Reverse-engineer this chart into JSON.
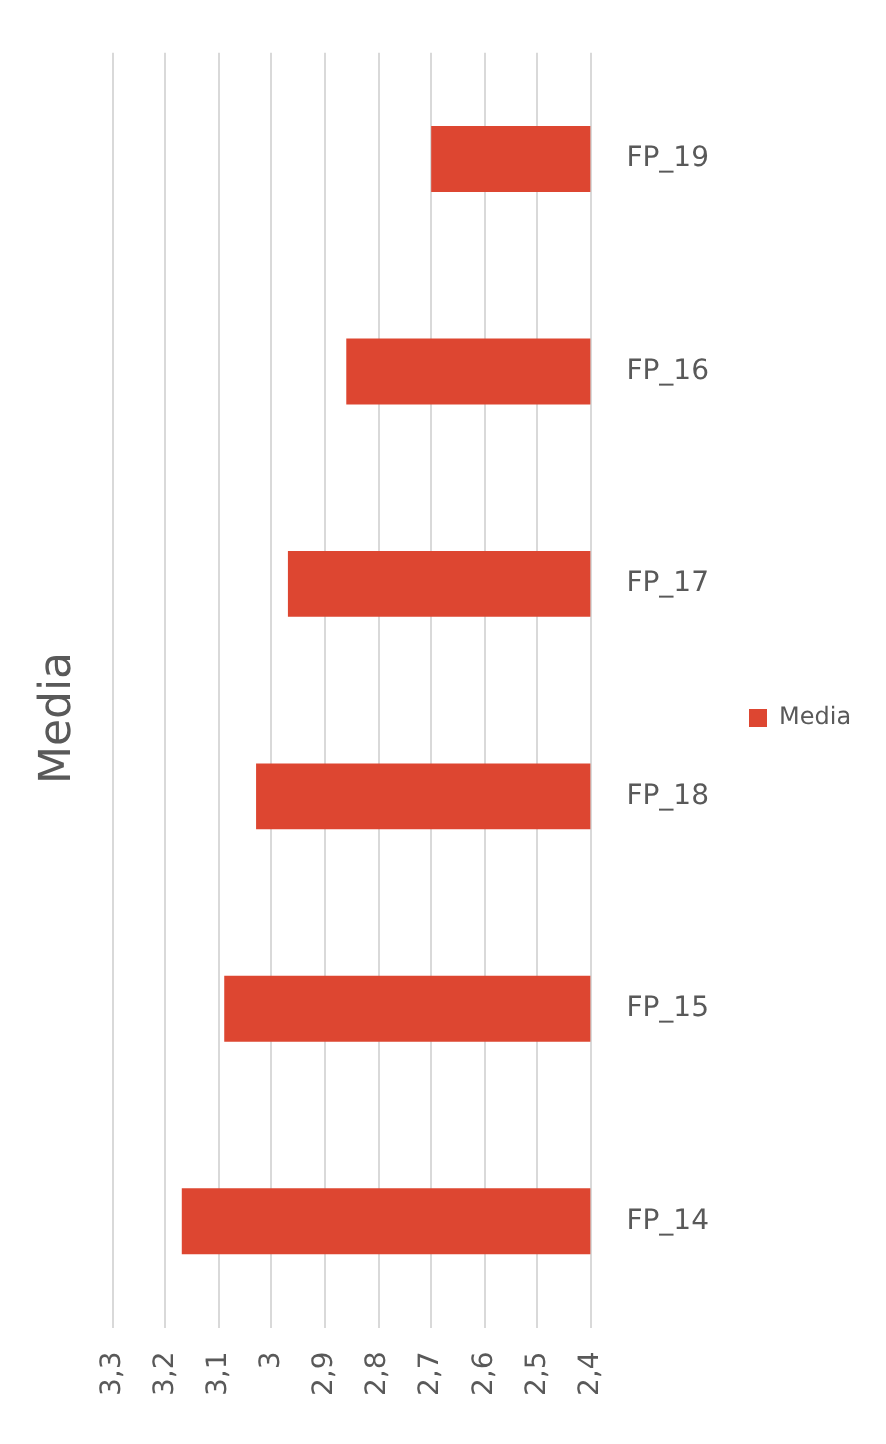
{
  "chart_data": {
    "type": "bar",
    "orientation": "horizontal",
    "title": "Media",
    "categories": [
      "FP_19",
      "FP_16",
      "FP_17",
      "FP_18",
      "FP_15",
      "FP_14"
    ],
    "series": [
      {
        "name": "Media",
        "color": "#dd4631",
        "values": [
          2.7,
          2.86,
          2.97,
          3.03,
          3.09,
          3.17
        ]
      }
    ],
    "xlim": [
      3.3,
      2.4
    ],
    "xticks": [
      {
        "value": 3.3,
        "label": "3,3"
      },
      {
        "value": 3.2,
        "label": "3,2"
      },
      {
        "value": 3.1,
        "label": "3,1"
      },
      {
        "value": 3,
        "label": "3"
      },
      {
        "value": 2.9,
        "label": "2,9"
      },
      {
        "value": 2.8,
        "label": "2,8"
      },
      {
        "value": 2.7,
        "label": "2,7"
      },
      {
        "value": 2.6,
        "label": "2,6"
      },
      {
        "value": 2.5,
        "label": "2,5"
      },
      {
        "value": 2.4,
        "label": "2,4"
      }
    ],
    "grid": "x",
    "legend": "right"
  }
}
